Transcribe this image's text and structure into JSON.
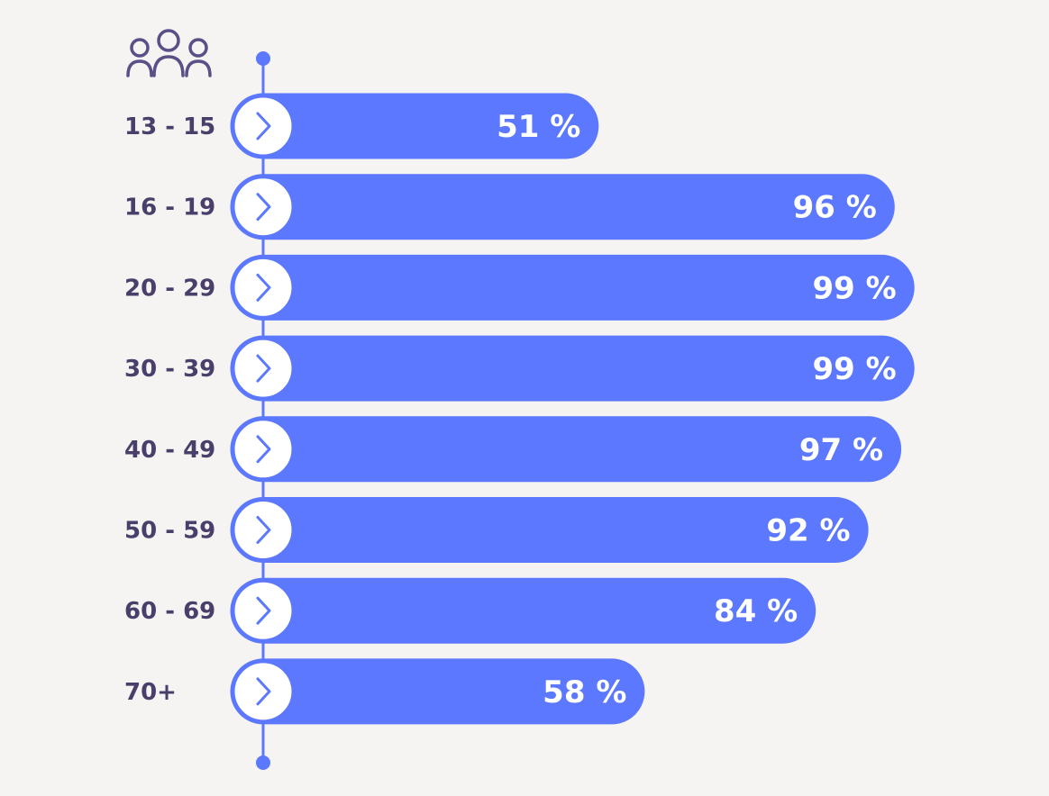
{
  "chart_data": {
    "type": "bar",
    "orientation": "horizontal",
    "categories": [
      "13 - 15",
      "16 - 19",
      "20 - 29",
      "30 - 39",
      "40 - 49",
      "50 - 59",
      "60 - 69",
      "70+"
    ],
    "values": [
      51,
      96,
      99,
      99,
      97,
      92,
      84,
      58
    ],
    "value_labels": [
      "51 %",
      "96 %",
      "99 %",
      "99 %",
      "97 %",
      "92 %",
      "84 %",
      "58 %"
    ],
    "title": "",
    "xlabel": "",
    "ylabel": "",
    "xlim": [
      0,
      100
    ],
    "grid": false,
    "legend": "none",
    "category_icon": "people-group-icon",
    "marker_icon": "chevron-right-icon",
    "colors": {
      "bar": "#5b78fe",
      "axis": "#5b78fe",
      "marker_fill": "#ffffff",
      "category_text": "#4a3f6b",
      "icon": "#5a4f86",
      "value_text": "#ffffff",
      "background": "#f5f4f2"
    }
  }
}
